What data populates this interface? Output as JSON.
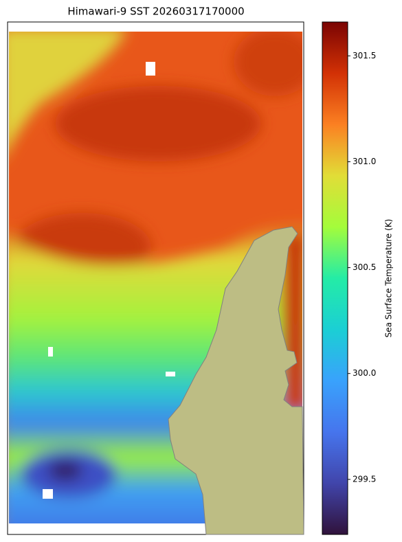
{
  "title": "Himawari-9 SST 20260317170000",
  "colorbar": {
    "label": "Sea Surface Temperature (K)",
    "lim": [
      299.24,
      301.66
    ],
    "ticks": [
      299.5,
      {
        "value": 300,
        "label": "300.0"
      },
      300.5,
      {
        "value": 301,
        "label": "301.0"
      },
      301.5
    ]
  }
}
